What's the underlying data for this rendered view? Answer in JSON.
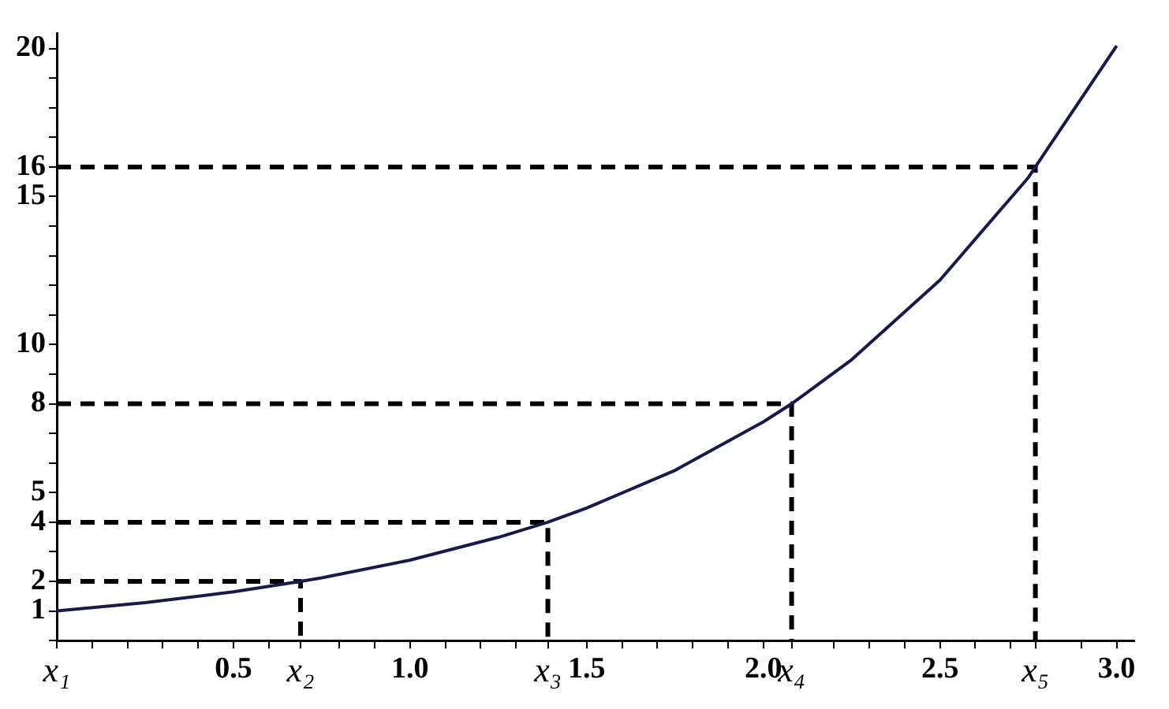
{
  "chart_data": {
    "type": "line",
    "marker": "none",
    "xlim": [
      0,
      3.05
    ],
    "ylim": [
      0,
      20.5
    ],
    "xticks": [
      {
        "value": 0,
        "label": "x₁"
      },
      {
        "value": 0.1,
        "label": null
      },
      {
        "value": 0.2,
        "label": null
      },
      {
        "value": 0.3,
        "label": null
      },
      {
        "value": 0.4,
        "label": null
      },
      {
        "value": 0.5,
        "label": "0.5"
      },
      {
        "value": 0.6,
        "label": null
      },
      {
        "value": 0.69,
        "label": "x₂"
      },
      {
        "value": 0.8,
        "label": null
      },
      {
        "value": 0.9,
        "label": null
      },
      {
        "value": 1,
        "label": "1.0"
      },
      {
        "value": 1.1,
        "label": null
      },
      {
        "value": 1.2,
        "label": null
      },
      {
        "value": 1.3,
        "label": null
      },
      {
        "value": 1.39,
        "label": "x₃"
      },
      {
        "value": 1.5,
        "label": "1.5"
      },
      {
        "value": 1.6,
        "label": null
      },
      {
        "value": 1.7,
        "label": null
      },
      {
        "value": 1.8,
        "label": null
      },
      {
        "value": 1.9,
        "label": null
      },
      {
        "value": 2,
        "label": "2.0"
      },
      {
        "value": 2.08,
        "label": "x₄"
      },
      {
        "value": 2.2,
        "label": null
      },
      {
        "value": 2.3,
        "label": null
      },
      {
        "value": 2.4,
        "label": null
      },
      {
        "value": 2.5,
        "label": "2.5"
      },
      {
        "value": 2.6,
        "label": null
      },
      {
        "value": 2.7,
        "label": null
      },
      {
        "value": 2.77,
        "label": "x₅"
      },
      {
        "value": 2.9,
        "label": null
      },
      {
        "value": 3,
        "label": "3.0"
      }
    ],
    "yticks": [
      {
        "value": 0,
        "label": null
      },
      1,
      2,
      {
        "value": 3,
        "label": null
      },
      4,
      5,
      {
        "value": 6,
        "label": null
      },
      {
        "value": 7,
        "label": null
      },
      8,
      {
        "value": 9,
        "label": null
      },
      10,
      {
        "value": 11,
        "label": null
      },
      {
        "value": 12,
        "label": null
      },
      {
        "value": 13,
        "label": null
      },
      {
        "value": 14,
        "label": null
      },
      15,
      16,
      {
        "value": 17,
        "label": null
      },
      {
        "value": 18,
        "label": null
      },
      {
        "value": 19,
        "label": null
      },
      20
    ],
    "series": [
      {
        "color": "#1a1a4a",
        "line_style": "solid",
        "x": [
          0,
          0.25,
          0.5,
          0.69,
          0.75,
          1,
          1.25,
          1.39,
          1.5,
          1.75,
          2,
          2.08,
          2.25,
          2.5,
          2.75,
          2.77,
          3
        ],
        "values": [
          1,
          1.28,
          1.65,
          2,
          2.12,
          2.72,
          3.49,
          4,
          4.48,
          5.75,
          7.39,
          8,
          9.49,
          12.18,
          15.64,
          16,
          20.09
        ]
      },
      {
        "color": "#000000",
        "line_style": "dashed",
        "x": [
          0,
          0.69,
          0.69
        ],
        "values": [
          2,
          2,
          0
        ]
      },
      {
        "color": "#000000",
        "line_style": "dashed",
        "x": [
          0,
          1.39,
          1.39
        ],
        "values": [
          4,
          4,
          0
        ]
      },
      {
        "color": "#000000",
        "line_style": "dashed",
        "x": [
          0,
          2.08,
          2.08
        ],
        "values": [
          8,
          8,
          0
        ]
      },
      {
        "color": "#000000",
        "line_style": "dashed",
        "x": [
          0,
          2.77,
          2.77
        ],
        "values": [
          16,
          16,
          0
        ]
      }
    ]
  }
}
